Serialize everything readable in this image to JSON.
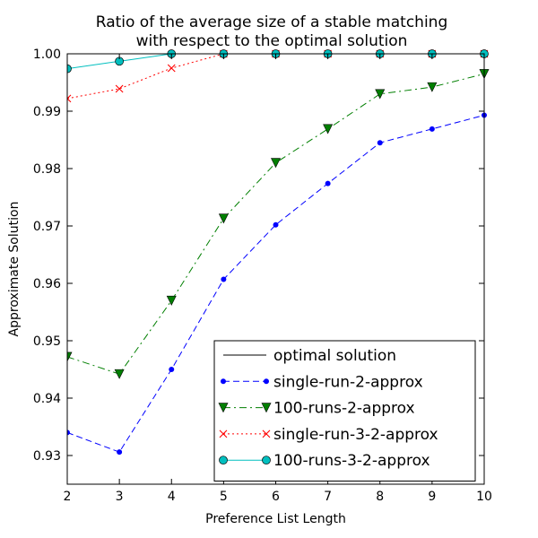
{
  "chart_data": {
    "type": "line",
    "title": "Ratio of the average size of a stable matching\nwith respect to the optimal solution",
    "xlabel": "Preference List Length",
    "ylabel": "Approximate Solution",
    "xlim": [
      2,
      10
    ],
    "ylim": [
      0.925,
      1.0
    ],
    "x_ticks": [
      2,
      3,
      4,
      5,
      6,
      7,
      8,
      9,
      10
    ],
    "y_ticks": [
      0.93,
      0.94,
      0.95,
      0.96,
      0.97,
      0.98,
      0.99,
      1.0
    ],
    "y_tick_labels": [
      "0.93",
      "0.94",
      "0.95",
      "0.96",
      "0.97",
      "0.98",
      "0.99",
      "1.00"
    ],
    "grid": false,
    "legend_position": "lower-right",
    "x": [
      2,
      3,
      4,
      5,
      6,
      7,
      8,
      9,
      10
    ],
    "series": [
      {
        "name": "optimal solution",
        "color": "#000000",
        "dash": "solid",
        "marker": "none",
        "values": [
          1.0,
          1.0,
          1.0,
          1.0,
          1.0,
          1.0,
          1.0,
          1.0,
          1.0
        ]
      },
      {
        "name": "single-run-2-approx",
        "color": "#0000ff",
        "dash": "dashed",
        "marker": "dot",
        "values": [
          0.934,
          0.9306,
          0.945,
          0.9607,
          0.9702,
          0.9774,
          0.9845,
          0.9869,
          0.9893
        ]
      },
      {
        "name": "100-runs-2-approx",
        "color": "#007f00",
        "dash": "dashdot",
        "marker": "triangle-down",
        "values": [
          0.9472,
          0.9442,
          0.957,
          0.9713,
          0.981,
          0.9869,
          0.993,
          0.9942,
          0.9965
        ]
      },
      {
        "name": "single-run-3-2-approx",
        "color": "#ff0000",
        "dash": "dotted",
        "marker": "x",
        "values": [
          0.9922,
          0.9939,
          0.9975,
          1.0,
          1.0,
          1.0,
          1.0,
          1.0,
          1.0
        ]
      },
      {
        "name": "100-runs-3-2-approx",
        "color": "#00bfbf",
        "dash": "solid",
        "marker": "circle",
        "values": [
          0.9974,
          0.9987,
          1.0,
          1.0,
          1.0,
          1.0,
          1.0,
          1.0,
          1.0
        ]
      }
    ]
  }
}
